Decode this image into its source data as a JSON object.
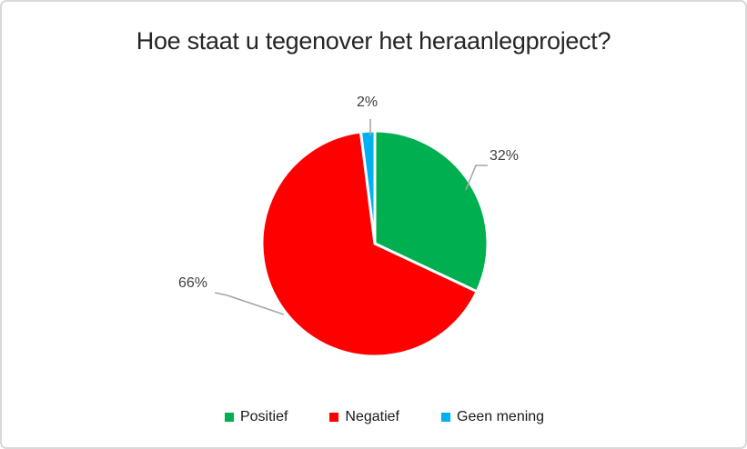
{
  "chart_data": {
    "type": "pie",
    "title": "Hoe staat u tegenover het heraanlegproject?",
    "start_angle_deg": 0,
    "direction": "clockwise",
    "legend_position": "bottom",
    "slices": [
      {
        "id": "positief",
        "name": "Positief",
        "value": 32,
        "pct_label": "32%",
        "color": "#00B050"
      },
      {
        "id": "negatief",
        "name": "Negatief",
        "value": 66,
        "pct_label": "66%",
        "color": "#FF0000"
      },
      {
        "id": "geen-mening",
        "name": "Geen mening",
        "value": 2,
        "pct_label": "2%",
        "color": "#00B0F0"
      }
    ]
  },
  "style_colors": {
    "leader_line": "#a6a6a6",
    "slice_border": "#ffffff",
    "frame_border": "#d9d9d9",
    "title_text": "#262626",
    "label_text": "#3f3f3f",
    "background": "#ffffff"
  }
}
